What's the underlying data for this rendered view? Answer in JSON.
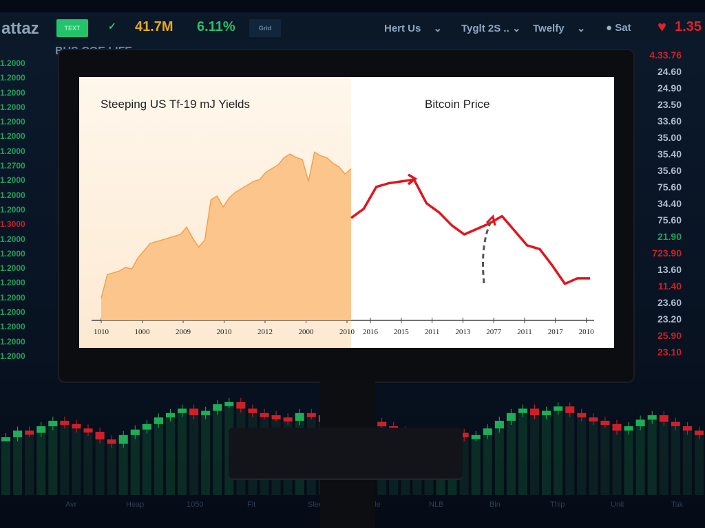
{
  "topbar": {
    "logo": "attaz",
    "green_button": "TEXT",
    "yellow_value": "41.7M",
    "green_value": "6.11%",
    "grid_button": "Grid",
    "dropdowns": [
      "Hert Us",
      "Tyglt 2S ..",
      "Twelfy"
    ],
    "status_label": "Sat",
    "heart_value": "1.35"
  },
  "subheading": "BUS COE LIFE",
  "left_ticker": [
    {
      "v": "1.2000",
      "c": "g"
    },
    {
      "v": "1.2000",
      "c": "g"
    },
    {
      "v": "1.2000",
      "c": "g"
    },
    {
      "v": "1.2000",
      "c": "g"
    },
    {
      "v": "1.2000",
      "c": "g"
    },
    {
      "v": "1.2000",
      "c": "g"
    },
    {
      "v": "1.2000",
      "c": "g"
    },
    {
      "v": "1.2700",
      "c": "g"
    },
    {
      "v": "1.2000",
      "c": "g"
    },
    {
      "v": "1.2000",
      "c": "g"
    },
    {
      "v": "1.2000",
      "c": "g"
    },
    {
      "v": "1.3000",
      "c": "r"
    },
    {
      "v": "1.2000",
      "c": "g"
    },
    {
      "v": "1.2000",
      "c": "g"
    },
    {
      "v": "1.2000",
      "c": "g"
    },
    {
      "v": "1.2000",
      "c": "g"
    },
    {
      "v": "1.2000",
      "c": "g"
    },
    {
      "v": "1.2000",
      "c": "g"
    },
    {
      "v": "1.2000",
      "c": "g"
    },
    {
      "v": "1.2000",
      "c": "g"
    },
    {
      "v": "1.2000",
      "c": "g"
    }
  ],
  "right_ticker": [
    {
      "v": "4.33.76",
      "c": "r"
    },
    {
      "v": "24.60",
      "c": ""
    },
    {
      "v": "24.90",
      "c": ""
    },
    {
      "v": "23.50",
      "c": ""
    },
    {
      "v": "33.60",
      "c": ""
    },
    {
      "v": "35.00",
      "c": ""
    },
    {
      "v": "35.40",
      "c": ""
    },
    {
      "v": "35.60",
      "c": ""
    },
    {
      "v": "75.60",
      "c": ""
    },
    {
      "v": "34.40",
      "c": ""
    },
    {
      "v": "75.60",
      "c": ""
    },
    {
      "v": "21.90",
      "c": "g"
    },
    {
      "v": "723.90",
      "c": "r"
    },
    {
      "v": "13.60",
      "c": ""
    },
    {
      "v": "11.40",
      "c": "r"
    },
    {
      "v": "23.60",
      "c": ""
    },
    {
      "v": "23.20",
      "c": ""
    },
    {
      "v": "25.90",
      "c": "r"
    },
    {
      "v": "23.10",
      "c": "r"
    }
  ],
  "bottom_labels": [
    "Avr",
    "Heap",
    "1050",
    "Fit",
    "Sleep",
    "File",
    "NLB",
    "Bin",
    "Thip",
    "Unit",
    "Tak"
  ],
  "background_candles": [
    40,
    46,
    44,
    50,
    55,
    52,
    48,
    45,
    38,
    34,
    42,
    47,
    52,
    58,
    62,
    66,
    60,
    64,
    70,
    72,
    66,
    62,
    60,
    58,
    55,
    62,
    60,
    54,
    50,
    56,
    58,
    54,
    50,
    46,
    42,
    40,
    36,
    38,
    44,
    40,
    42,
    48,
    55,
    62,
    66,
    60,
    64,
    68,
    62,
    58,
    55,
    52,
    46,
    50,
    56,
    60,
    54,
    50,
    46,
    42
  ],
  "background_candle_colors": {
    "up": "#1fae56",
    "down": "#d11f2a"
  },
  "chart_data": [
    {
      "type": "area",
      "title": "Steeping US Tf-19 mJ Yields",
      "color": "#f3a04a",
      "fill": "#fcc58c",
      "x_ticks": [
        "1010",
        "1000",
        "2009",
        "2010",
        "2012",
        "2000",
        "2010"
      ],
      "values": [
        12,
        25,
        26,
        27,
        29,
        28,
        34,
        38,
        42,
        43,
        44,
        45,
        46,
        47,
        51,
        45,
        40,
        44,
        66,
        68,
        62,
        67,
        70,
        72,
        74,
        76,
        77,
        81,
        83,
        85,
        89,
        91,
        89,
        88,
        76,
        92,
        90,
        89,
        86,
        84,
        80,
        83
      ],
      "ylim": [
        0,
        100
      ]
    },
    {
      "type": "line",
      "title": "Bitcoin Price",
      "color": "#e2141c",
      "x_ticks": [
        "2016",
        "2015",
        "2011",
        "2013",
        "2077",
        "2011",
        "2017",
        "2010"
      ],
      "values": [
        56,
        61,
        73,
        75,
        76,
        77,
        64,
        59,
        52,
        47,
        50,
        53,
        57,
        49,
        41,
        39,
        30,
        20,
        23,
        23
      ],
      "annotation": "dashed upward arrow to local peak",
      "ylim": [
        0,
        100
      ]
    }
  ]
}
